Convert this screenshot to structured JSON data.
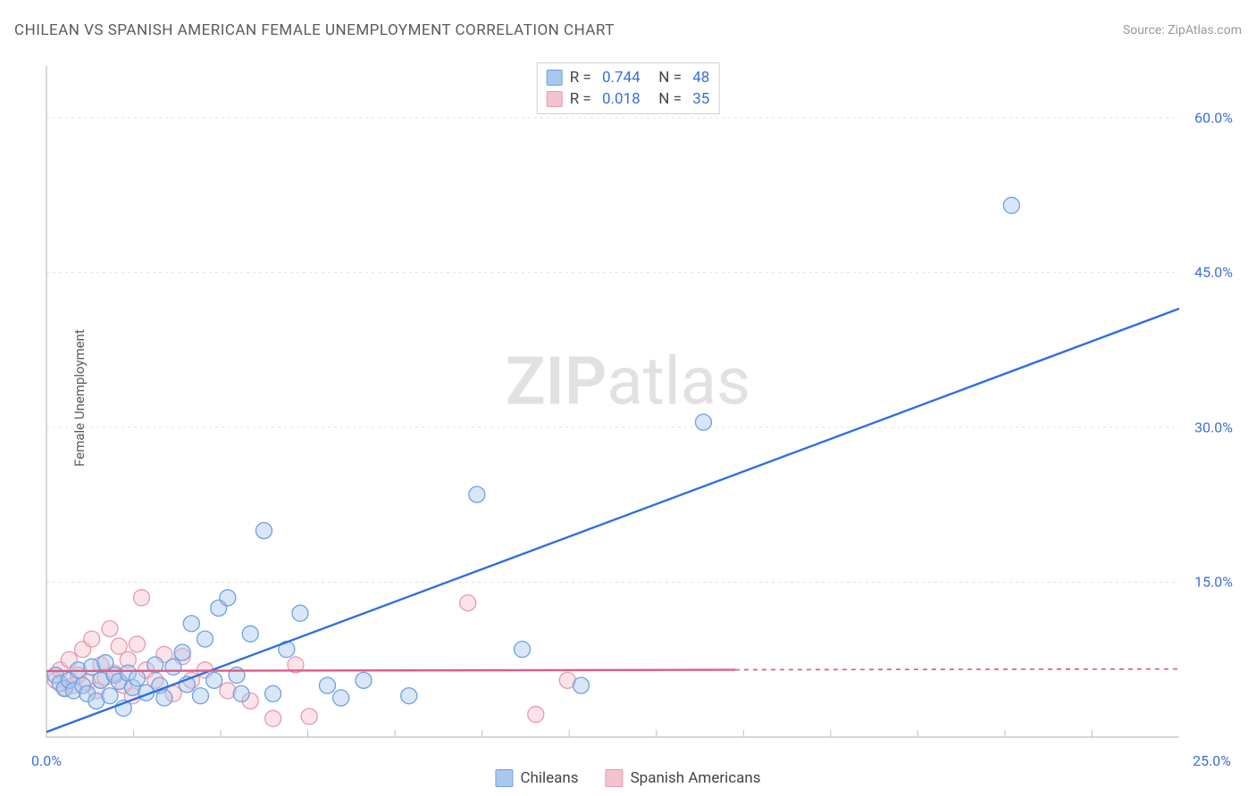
{
  "header": {
    "title": "CHILEAN VS SPANISH AMERICAN FEMALE UNEMPLOYMENT CORRELATION CHART",
    "source": "Source: ZipAtlas.com"
  },
  "watermark": {
    "zip": "ZIP",
    "atlas": "atlas"
  },
  "chart": {
    "type": "scatter",
    "ylabel": "Female Unemployment",
    "background_color": "#ffffff",
    "grid_color": "#e0e0e0",
    "grid_dash": "3,4",
    "axis_color": "#bfbfbf",
    "xlim": [
      0,
      25
    ],
    "ylim": [
      0,
      65
    ],
    "xticks": [
      {
        "value": 0,
        "label": "0.0%"
      },
      {
        "value": 25,
        "label": "25.0%"
      }
    ],
    "yticks": [
      {
        "value": 15,
        "label": "15.0%"
      },
      {
        "value": 30,
        "label": "30.0%"
      },
      {
        "value": 45,
        "label": "45.0%"
      },
      {
        "value": 60,
        "label": "60.0%"
      }
    ],
    "tick_divisions_x": 13,
    "marker_radius": 9,
    "marker_fill_opacity": 0.45,
    "marker_stroke_width": 1.3,
    "text_color": "#5a5a5a",
    "value_color": "#3b6fd6",
    "label_fontsize": 15,
    "tick_fontsize": 16,
    "series": [
      {
        "name": "Chileans",
        "fill": "#a9c8ee",
        "stroke": "#6da1e0",
        "line_color": "#2f6fe0",
        "line_width": 2.4,
        "line_dash_after_x": null,
        "R": "0.744",
        "N": "48",
        "regression": {
          "x1": 0,
          "y1": 0.5,
          "x2": 25,
          "y2": 41.5
        },
        "points": [
          [
            0.2,
            6.0
          ],
          [
            0.3,
            5.2
          ],
          [
            0.4,
            4.7
          ],
          [
            0.5,
            5.5
          ],
          [
            0.6,
            4.5
          ],
          [
            0.7,
            6.5
          ],
          [
            0.8,
            5.0
          ],
          [
            0.9,
            4.2
          ],
          [
            1.0,
            6.8
          ],
          [
            1.1,
            3.5
          ],
          [
            1.2,
            5.5
          ],
          [
            1.3,
            7.2
          ],
          [
            1.4,
            4.0
          ],
          [
            1.5,
            6.0
          ],
          [
            1.6,
            5.4
          ],
          [
            1.7,
            2.8
          ],
          [
            1.8,
            6.2
          ],
          [
            1.9,
            4.8
          ],
          [
            2.0,
            5.7
          ],
          [
            2.2,
            4.3
          ],
          [
            2.4,
            7.0
          ],
          [
            2.5,
            5.0
          ],
          [
            2.6,
            3.8
          ],
          [
            2.8,
            6.8
          ],
          [
            3.0,
            8.2
          ],
          [
            3.1,
            5.1
          ],
          [
            3.2,
            11.0
          ],
          [
            3.4,
            4.0
          ],
          [
            3.5,
            9.5
          ],
          [
            3.7,
            5.5
          ],
          [
            3.8,
            12.5
          ],
          [
            4.0,
            13.5
          ],
          [
            4.2,
            6.0
          ],
          [
            4.3,
            4.2
          ],
          [
            4.5,
            10.0
          ],
          [
            4.8,
            20.0
          ],
          [
            5.0,
            4.2
          ],
          [
            5.3,
            8.5
          ],
          [
            5.6,
            12.0
          ],
          [
            6.2,
            5.0
          ],
          [
            6.5,
            3.8
          ],
          [
            7.0,
            5.5
          ],
          [
            8.0,
            4.0
          ],
          [
            9.5,
            23.5
          ],
          [
            10.5,
            8.5
          ],
          [
            11.8,
            5.0
          ],
          [
            14.5,
            30.5
          ],
          [
            21.3,
            51.5
          ]
        ]
      },
      {
        "name": "Spanish Americans",
        "fill": "#f3c3cf",
        "stroke": "#e59ab0",
        "line_color": "#e05a88",
        "line_width": 2.4,
        "line_dash_after_x": 15.2,
        "R": "0.018",
        "N": "35",
        "regression": {
          "x1": 0,
          "y1": 6.4,
          "x2": 25,
          "y2": 6.6
        },
        "points": [
          [
            0.2,
            5.5
          ],
          [
            0.3,
            6.5
          ],
          [
            0.4,
            4.8
          ],
          [
            0.5,
            7.5
          ],
          [
            0.6,
            5.0
          ],
          [
            0.7,
            6.0
          ],
          [
            0.8,
            8.5
          ],
          [
            0.9,
            5.3
          ],
          [
            1.0,
            9.5
          ],
          [
            1.1,
            4.5
          ],
          [
            1.2,
            7.0
          ],
          [
            1.3,
            5.8
          ],
          [
            1.4,
            10.5
          ],
          [
            1.5,
            6.2
          ],
          [
            1.6,
            8.8
          ],
          [
            1.7,
            5.0
          ],
          [
            1.8,
            7.5
          ],
          [
            1.9,
            4.0
          ],
          [
            2.0,
            9.0
          ],
          [
            2.1,
            13.5
          ],
          [
            2.2,
            6.5
          ],
          [
            2.4,
            5.5
          ],
          [
            2.6,
            8.0
          ],
          [
            2.8,
            4.2
          ],
          [
            3.0,
            7.8
          ],
          [
            3.2,
            5.5
          ],
          [
            3.5,
            6.5
          ],
          [
            4.0,
            4.5
          ],
          [
            4.5,
            3.5
          ],
          [
            5.0,
            1.8
          ],
          [
            5.5,
            7.0
          ],
          [
            5.8,
            2.0
          ],
          [
            9.3,
            13.0
          ],
          [
            10.8,
            2.2
          ],
          [
            11.5,
            5.5
          ]
        ]
      }
    ],
    "bottom_legend": [
      {
        "label": "Chileans",
        "fill": "#a9c8ee",
        "stroke": "#6da1e0"
      },
      {
        "label": "Spanish Americans",
        "fill": "#f3c3cf",
        "stroke": "#e59ab0"
      }
    ]
  }
}
